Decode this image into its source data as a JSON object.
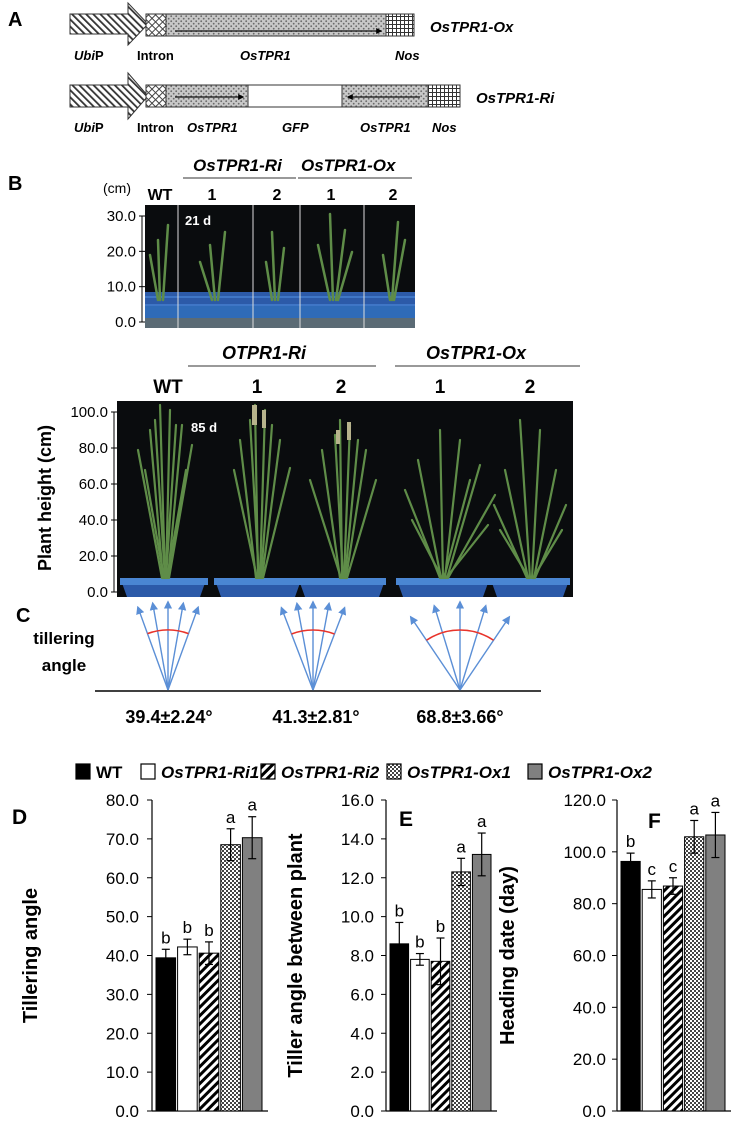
{
  "panel_a": {
    "label": "A",
    "construct_ox": {
      "name": "OsTPR1-Ox",
      "promoter": "Ubi",
      "promoter_suffix": "P",
      "intron": "Intron",
      "gene": "OsTPR1",
      "terminator": "Nos"
    },
    "construct_ri": {
      "name": "OsTPR1-Ri",
      "promoter": "Ubi",
      "promoter_suffix": "P",
      "intron": "Intron",
      "gene_left": "OsTPR1",
      "spacer": "GFP",
      "gene_right": "OsTPR1",
      "terminator": "Nos"
    }
  },
  "panel_b": {
    "label": "B",
    "top_photo": {
      "unit": "(cm)",
      "group_ri": "OsTPR1-Ri",
      "group_ox": "OsTPR1-Ox",
      "lanes": [
        "WT",
        "1",
        "2",
        "1",
        "2"
      ],
      "day": "21 d",
      "scale": [
        "30.0",
        "20.0",
        "10.0",
        "0.0"
      ]
    },
    "bottom_photo": {
      "group_ri": "OTPR1-Ri",
      "group_ox": "OsTPR1-Ox",
      "lanes": [
        "WT",
        "1",
        "2",
        "1",
        "2"
      ],
      "day": "85 d",
      "ylabel": "Plant height (cm)",
      "scale": [
        "100.0",
        "80.0",
        "60.0",
        "40.0",
        "20.0",
        "0.0"
      ]
    }
  },
  "panel_c": {
    "label": "C",
    "title_line1": "tillering",
    "title_line2": "angle",
    "values": [
      "39.4±2.24°",
      "41.3±2.81°",
      "68.8±3.66°"
    ]
  },
  "legend": {
    "items": [
      {
        "name": "WT",
        "fill": "solid"
      },
      {
        "name": "OsTPR1-Ri1",
        "fill": "white"
      },
      {
        "name": "OsTPR1-Ri2",
        "fill": "diagonal"
      },
      {
        "name": "OsTPR1-Ox1",
        "fill": "checker"
      },
      {
        "name": "OsTPR1-Ox2",
        "fill": "gray"
      }
    ]
  },
  "colors": {
    "wt": "#000000",
    "ri1": "#ffffff",
    "ox2": "#808080",
    "arrow_blue": "#5b8fd6",
    "arc_red": "#e8342b",
    "photo_bg": "#0a0c0e",
    "pot_blue": "#2c5aa8",
    "plant_green": "#5f8d48"
  },
  "chart_data": [
    {
      "panel": "D",
      "type": "bar",
      "categories": [
        "WT",
        "OsTPR1-Ri1",
        "OsTPR1-Ri2",
        "OsTPR1-Ox1",
        "OsTPR1-Ox2"
      ],
      "values": [
        39.4,
        42.2,
        40.6,
        68.5,
        70.3
      ],
      "errors": [
        2.2,
        2.0,
        2.9,
        4.1,
        5.4
      ],
      "letters": [
        "b",
        "b",
        "b",
        "a",
        "a"
      ],
      "ylabel": "Tillering angle",
      "ylim": [
        0,
        80
      ],
      "yticks": [
        "0.0",
        "10.0",
        "20.0",
        "30.0",
        "40.0",
        "50.0",
        "60.0",
        "70.0",
        "80.0"
      ]
    },
    {
      "panel": "E",
      "type": "bar",
      "categories": [
        "WT",
        "OsTPR1-Ri1",
        "OsTPR1-Ri2",
        "OsTPR1-Ox1",
        "OsTPR1-Ox2"
      ],
      "values": [
        8.6,
        7.8,
        7.7,
        12.3,
        13.2
      ],
      "errors": [
        1.1,
        0.3,
        1.2,
        0.7,
        1.1
      ],
      "letters": [
        "b",
        "b",
        "b",
        "a",
        "a"
      ],
      "ylabel": "Tiller angle between plant",
      "ylim": [
        0,
        16
      ],
      "yticks": [
        "0.0",
        "2.0",
        "4.0",
        "6.0",
        "8.0",
        "10.0",
        "12.0",
        "14.0",
        "16.0"
      ]
    },
    {
      "panel": "F",
      "type": "bar",
      "categories": [
        "WT",
        "OsTPR1-Ri1",
        "OsTPR1-Ri2",
        "OsTPR1-Ox1",
        "OsTPR1-Ox2"
      ],
      "values": [
        96.3,
        85.5,
        86.8,
        105.8,
        106.5
      ],
      "errors": [
        3.2,
        3.3,
        3.2,
        6.3,
        8.7
      ],
      "letters": [
        "b",
        "c",
        "c",
        "a",
        "a"
      ],
      "ylabel": "Heading date (day)",
      "ylim": [
        0,
        120
      ],
      "yticks": [
        "0.0",
        "20.0",
        "40.0",
        "60.0",
        "80.0",
        "100.0",
        "120.0"
      ]
    }
  ]
}
